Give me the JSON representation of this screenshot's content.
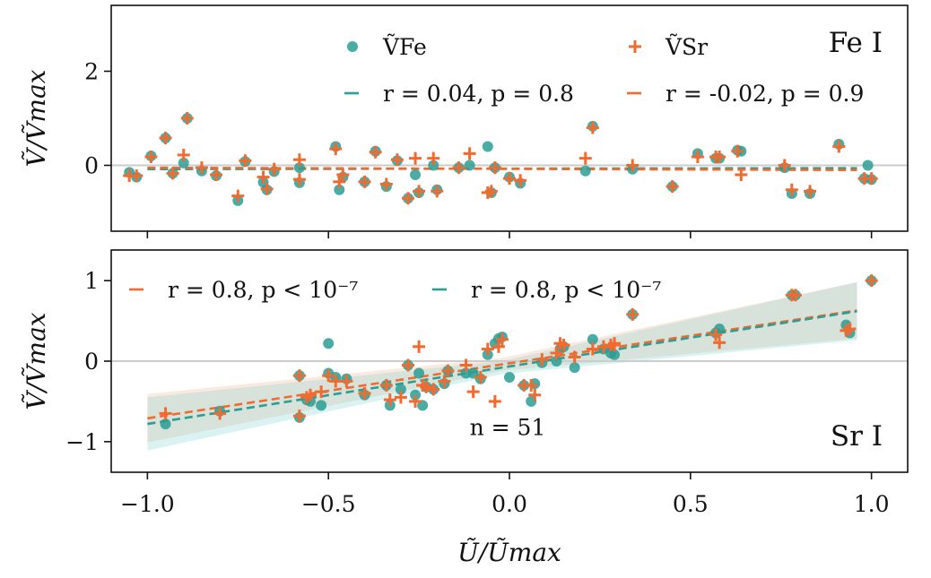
{
  "chart_data": {
    "type": "scatter",
    "x_label": "Ũ/Ũmax",
    "x_ticks": [
      "−1.0",
      "−0.5",
      "0.0",
      "0.5",
      "1.0"
    ],
    "x_tick_values": [
      -1.0,
      -0.5,
      0.0,
      0.5,
      1.0
    ],
    "xlim": [
      -1.1,
      1.1
    ],
    "colors": {
      "fe": "#2a9d94",
      "sr": "#f26a2e",
      "zero_line": "#cccccc"
    },
    "panels": [
      {
        "id": "fe",
        "label": "Fe I",
        "y_label": "Ṽ/Ṽmax",
        "ylim": [
          -1.4,
          3.4
        ],
        "y_ticks": [
          "0",
          "2"
        ],
        "y_tick_values": [
          0,
          2
        ],
        "legend": [
          {
            "marker": "dot",
            "color": "fe",
            "text": "ṼFe"
          },
          {
            "marker": "plus",
            "color": "sr",
            "text": "ṼSr"
          },
          {
            "marker": "dash",
            "color": "fe",
            "text": "r = 0.04, p = 0.8"
          },
          {
            "marker": "dash",
            "color": "sr",
            "text": "r = -0.02, p = 0.9"
          }
        ],
        "fit_lines": [
          {
            "color": "fe",
            "x": [
              -1.0,
              0.96
            ],
            "y": [
              -0.08,
              -0.06
            ]
          },
          {
            "color": "sr",
            "x": [
              -1.0,
              0.96
            ],
            "y": [
              -0.05,
              -0.1
            ]
          }
        ],
        "series": [
          {
            "name": "ṼFe",
            "marker": "dot",
            "color": "fe",
            "x": [
              -1.05,
              -1.03,
              -0.99,
              -0.95,
              -0.93,
              -0.9,
              -0.89,
              -0.85,
              -0.81,
              -0.75,
              -0.73,
              -0.68,
              -0.67,
              -0.65,
              -0.58,
              -0.58,
              -0.48,
              -0.47,
              -0.46,
              -0.4,
              -0.37,
              -0.34,
              -0.31,
              -0.28,
              -0.26,
              -0.25,
              -0.21,
              -0.2,
              -0.14,
              -0.11,
              -0.06,
              -0.05,
              -0.04,
              0.0,
              0.03,
              0.21,
              0.23,
              0.34,
              0.45,
              0.52,
              0.57,
              0.58,
              0.63,
              0.64,
              0.76,
              0.78,
              0.83,
              0.91,
              0.98,
              1.0,
              0.99
            ],
            "y": [
              -0.15,
              -0.25,
              0.2,
              0.58,
              -0.17,
              0.05,
              1.0,
              -0.12,
              -0.22,
              -0.75,
              0.08,
              -0.36,
              -0.52,
              -0.13,
              -0.05,
              -0.37,
              0.4,
              -0.52,
              -0.25,
              -0.35,
              0.3,
              -0.45,
              0.1,
              -0.7,
              -0.2,
              -0.58,
              0.0,
              -0.52,
              -0.05,
              0.0,
              0.4,
              -0.58,
              -0.05,
              -0.25,
              -0.38,
              -0.12,
              0.83,
              -0.08,
              -0.45,
              0.25,
              0.15,
              0.15,
              0.32,
              0.3,
              -0.05,
              -0.6,
              -0.6,
              0.45,
              -0.28,
              -0.3,
              0.0
            ]
          },
          {
            "name": "ṼSr",
            "marker": "plus",
            "color": "sr",
            "x": [
              -1.05,
              -1.03,
              -0.99,
              -0.95,
              -0.93,
              -0.9,
              -0.89,
              -0.85,
              -0.81,
              -0.75,
              -0.73,
              -0.68,
              -0.67,
              -0.65,
              -0.58,
              -0.58,
              -0.48,
              -0.47,
              -0.46,
              -0.4,
              -0.37,
              -0.34,
              -0.31,
              -0.28,
              -0.26,
              -0.25,
              -0.21,
              -0.2,
              -0.14,
              -0.11,
              -0.06,
              -0.05,
              -0.04,
              0.0,
              0.03,
              0.21,
              0.23,
              0.34,
              0.45,
              0.52,
              0.57,
              0.58,
              0.63,
              0.64,
              0.76,
              0.78,
              0.83,
              0.91,
              0.98,
              1.0
            ],
            "y": [
              -0.22,
              -0.22,
              0.18,
              0.58,
              -0.17,
              0.22,
              1.0,
              -0.05,
              -0.2,
              -0.65,
              0.1,
              -0.25,
              -0.5,
              -0.08,
              0.12,
              -0.3,
              0.35,
              -0.35,
              -0.2,
              -0.35,
              0.28,
              -0.4,
              0.12,
              -0.7,
              0.15,
              -0.55,
              0.15,
              -0.55,
              -0.05,
              0.25,
              -0.58,
              -0.55,
              -0.05,
              -0.28,
              -0.32,
              0.15,
              0.8,
              0.0,
              -0.45,
              0.18,
              0.18,
              0.18,
              0.3,
              -0.2,
              0.0,
              -0.52,
              -0.55,
              0.4,
              -0.28,
              -0.28
            ]
          }
        ]
      },
      {
        "id": "sr",
        "label": "Sr I",
        "y_label": "Ṽ/Ṽmax",
        "ylim": [
          -1.38,
          1.38
        ],
        "y_ticks": [
          "−1",
          "0",
          "1"
        ],
        "y_tick_values": [
          -1,
          0,
          1
        ],
        "legend": [
          {
            "marker": "dash",
            "color": "sr",
            "text": "r = 0.8, p < 10⁻⁷"
          },
          {
            "marker": "dash",
            "color": "fe",
            "text": "r = 0.8, p < 10⁻⁷"
          }
        ],
        "annotation": "n = 51",
        "fit_lines": [
          {
            "color": "sr",
            "x": [
              -1.0,
              0.96
            ],
            "y": [
              -0.71,
              0.63
            ],
            "band_half_width": [
              0.3,
              0.08,
              0.35
            ]
          },
          {
            "color": "fe",
            "x": [
              -1.0,
              0.96
            ],
            "y": [
              -0.78,
              0.62
            ],
            "band_half_width": [
              0.33,
              0.08,
              0.36
            ]
          }
        ],
        "series": [
          {
            "name": "ṼFe",
            "marker": "dot",
            "color": "fe",
            "x": [
              -0.95,
              -0.8,
              -0.58,
              -0.58,
              -0.56,
              -0.55,
              -0.52,
              -0.5,
              -0.5,
              -0.48,
              -0.45,
              -0.4,
              -0.34,
              -0.33,
              -0.3,
              -0.28,
              -0.26,
              -0.25,
              -0.24,
              -0.23,
              -0.21,
              -0.18,
              -0.17,
              -0.12,
              -0.1,
              -0.08,
              -0.06,
              -0.04,
              -0.03,
              -0.02,
              0.04,
              0.06,
              0.07,
              0.09,
              0.13,
              0.14,
              0.15,
              0.18,
              0.23,
              0.26,
              0.28,
              0.29,
              0.34,
              0.57,
              0.58,
              0.78,
              0.79,
              0.93,
              0.94,
              1.0,
              0.0
            ],
            "y": [
              -0.78,
              -0.62,
              -0.18,
              -0.7,
              -0.48,
              -0.5,
              -0.55,
              -0.15,
              0.22,
              -0.2,
              -0.22,
              -0.42,
              -0.3,
              -0.55,
              -0.35,
              -0.05,
              -0.42,
              -0.15,
              -0.55,
              -0.32,
              -0.35,
              -0.28,
              -0.12,
              -0.15,
              -0.15,
              -0.22,
              0.08,
              0.22,
              0.28,
              0.3,
              -0.3,
              -0.5,
              -0.28,
              -0.02,
              0.0,
              0.15,
              0.18,
              -0.08,
              0.27,
              0.15,
              0.1,
              0.08,
              0.58,
              0.35,
              0.4,
              0.82,
              0.82,
              0.45,
              0.35,
              1.0,
              -0.2
            ]
          },
          {
            "name": "ṼSr",
            "marker": "plus",
            "color": "sr",
            "x": [
              -0.95,
              -0.8,
              -0.58,
              -0.58,
              -0.56,
              -0.55,
              -0.52,
              -0.5,
              -0.48,
              -0.45,
              -0.4,
              -0.34,
              -0.33,
              -0.3,
              -0.28,
              -0.26,
              -0.25,
              -0.24,
              -0.23,
              -0.21,
              -0.18,
              -0.17,
              -0.12,
              -0.1,
              -0.08,
              -0.06,
              -0.04,
              -0.03,
              -0.02,
              0.04,
              0.06,
              0.07,
              0.09,
              0.13,
              0.14,
              0.15,
              0.18,
              0.23,
              0.26,
              0.28,
              0.29,
              0.34,
              0.57,
              0.58,
              0.78,
              0.79,
              0.93,
              0.94,
              1.0,
              0.29
            ],
            "y": [
              -0.65,
              -0.65,
              -0.18,
              -0.68,
              -0.45,
              -0.42,
              -0.38,
              -0.18,
              -0.25,
              -0.25,
              -0.4,
              -0.3,
              -0.48,
              -0.45,
              -0.05,
              -0.5,
              0.18,
              -0.3,
              -0.32,
              -0.35,
              -0.25,
              -0.12,
              -0.05,
              -0.38,
              -0.2,
              0.15,
              -0.5,
              0.18,
              0.27,
              -0.3,
              -0.3,
              -0.42,
              0.02,
              0.1,
              0.22,
              0.2,
              0.05,
              0.15,
              0.18,
              0.2,
              0.22,
              0.58,
              0.33,
              0.23,
              0.82,
              0.82,
              0.38,
              0.4,
              1.0,
              0.2
            ]
          }
        ]
      }
    ]
  }
}
